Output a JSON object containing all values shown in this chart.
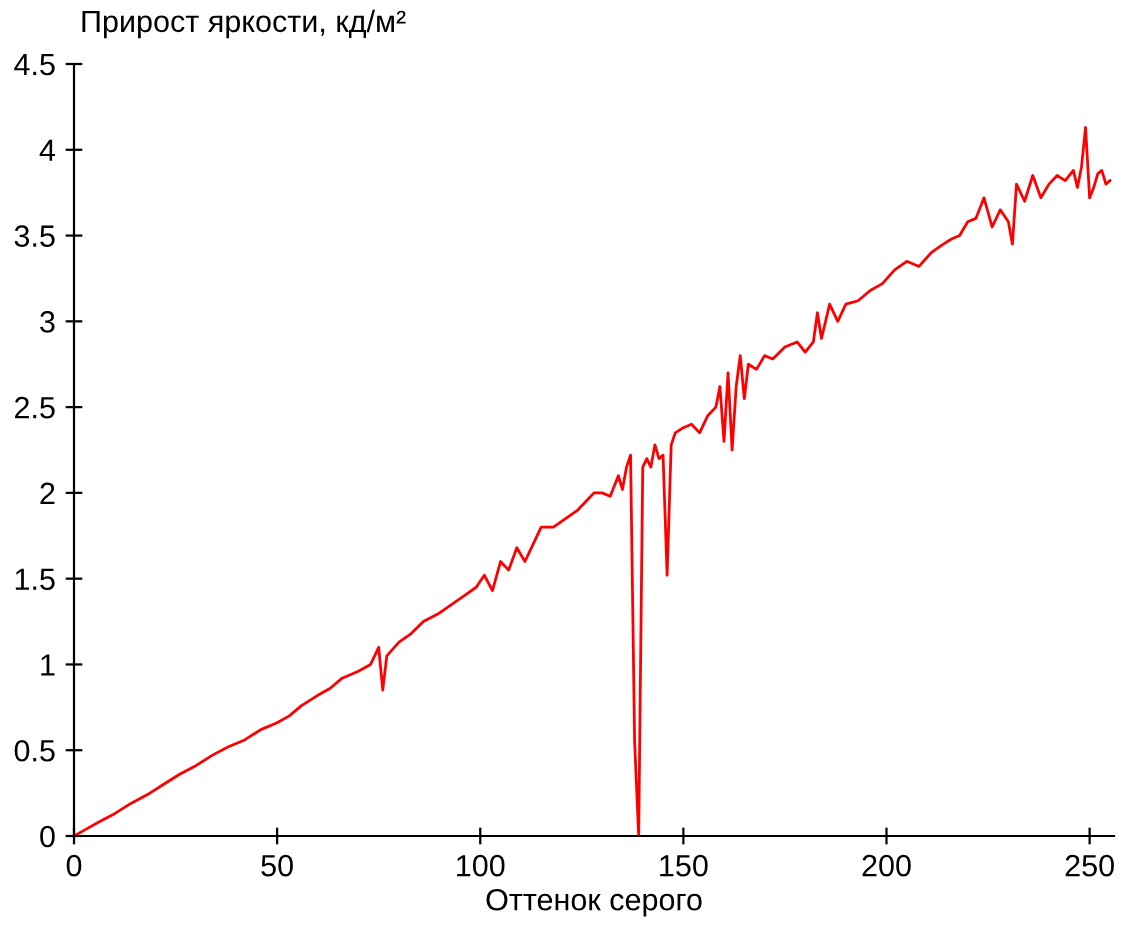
{
  "chart_data": {
    "type": "line",
    "title": "Прирост яркости, кд/м²",
    "xlabel": "Оттенок серого",
    "xlim": [
      0,
      256
    ],
    "xticks": [
      0,
      50,
      100,
      150,
      200,
      250
    ],
    "ylim": [
      0,
      4.5
    ],
    "yticks": [
      0,
      0.5,
      1,
      1.5,
      2,
      2.5,
      3,
      3.5,
      4,
      4.5
    ],
    "grid": false,
    "legend": false,
    "marker": "none",
    "line_style": "solid",
    "series": [
      {
        "color": "#ff0000",
        "x": [
          0,
          3,
          6,
          10,
          14,
          18,
          22,
          26,
          30,
          34,
          38,
          42,
          46,
          50,
          53,
          56,
          60,
          63,
          66,
          70,
          73,
          75,
          76,
          77,
          80,
          83,
          86,
          90,
          93,
          96,
          99,
          101,
          103,
          105,
          107,
          109,
          111,
          113,
          115,
          118,
          121,
          124,
          126,
          128,
          130,
          132,
          134,
          135,
          136,
          137,
          138,
          139,
          140,
          141,
          142,
          143,
          144,
          145,
          146,
          147,
          148,
          150,
          152,
          154,
          156,
          158,
          159,
          160,
          161,
          162,
          163,
          164,
          165,
          166,
          168,
          170,
          172,
          175,
          178,
          180,
          182,
          183,
          184,
          186,
          188,
          190,
          193,
          196,
          199,
          202,
          205,
          208,
          211,
          214,
          216,
          218,
          220,
          222,
          224,
          226,
          228,
          230,
          231,
          232,
          234,
          236,
          238,
          240,
          242,
          244,
          246,
          247,
          248,
          249,
          250,
          251,
          252,
          253,
          254,
          255
        ],
        "values": [
          0,
          0.04,
          0.08,
          0.13,
          0.19,
          0.24,
          0.3,
          0.36,
          0.41,
          0.47,
          0.52,
          0.56,
          0.62,
          0.66,
          0.7,
          0.76,
          0.82,
          0.86,
          0.92,
          0.96,
          1.0,
          1.1,
          0.85,
          1.05,
          1.13,
          1.18,
          1.25,
          1.3,
          1.35,
          1.4,
          1.45,
          1.52,
          1.43,
          1.6,
          1.55,
          1.68,
          1.6,
          1.7,
          1.8,
          1.8,
          1.85,
          1.9,
          1.95,
          2.0,
          2.0,
          1.98,
          2.1,
          2.02,
          2.15,
          2.22,
          0.55,
          0.0,
          2.15,
          2.2,
          2.15,
          2.28,
          2.2,
          2.22,
          1.52,
          2.28,
          2.35,
          2.38,
          2.4,
          2.35,
          2.45,
          2.5,
          2.62,
          2.3,
          2.7,
          2.25,
          2.62,
          2.8,
          2.55,
          2.75,
          2.72,
          2.8,
          2.78,
          2.85,
          2.88,
          2.82,
          2.88,
          3.05,
          2.9,
          3.1,
          3.0,
          3.1,
          3.12,
          3.18,
          3.22,
          3.3,
          3.35,
          3.32,
          3.4,
          3.45,
          3.48,
          3.5,
          3.58,
          3.6,
          3.72,
          3.55,
          3.65,
          3.58,
          3.45,
          3.8,
          3.7,
          3.85,
          3.72,
          3.8,
          3.85,
          3.82,
          3.88,
          3.78,
          3.9,
          4.13,
          3.72,
          3.78,
          3.86,
          3.88,
          3.8,
          3.82
        ]
      }
    ]
  }
}
